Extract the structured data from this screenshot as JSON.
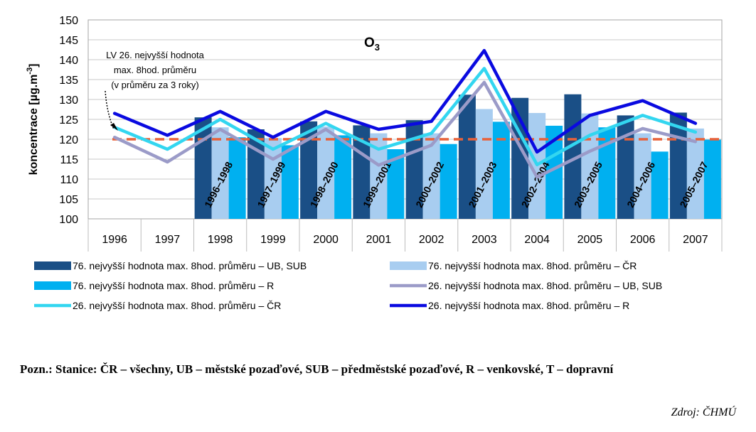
{
  "chart_data": {
    "type": "bar",
    "title": "O3",
    "ylabel": "koncentrace [µg.m-3]",
    "ylabel_parts": {
      "main": "koncentrace [µg.m",
      "sup": "-3",
      "close": "]"
    },
    "ylim": [
      100,
      150
    ],
    "yticks": [
      100,
      105,
      110,
      115,
      120,
      125,
      130,
      135,
      140,
      145,
      150
    ],
    "categories": [
      "1996",
      "1997",
      "1998",
      "1999",
      "2000",
      "2001",
      "2002",
      "2003",
      "2004",
      "2005",
      "2006",
      "2007"
    ],
    "period_labels": [
      "",
      "",
      "1996–1998",
      "1997–1999",
      "1998–2000",
      "1999–2001",
      "2000–2002",
      "2001–2003",
      "2002–2004",
      "2003–2005",
      "2004–2006",
      "2005–2007"
    ],
    "bar_series": [
      {
        "name": "76. nejvyšší hodnota max. 8hod. průměru – UB, SUB",
        "color": "#1a4f86",
        "values": [
          null,
          null,
          125.5,
          122.5,
          124.5,
          123.5,
          124.8,
          131.2,
          130.4,
          131.3,
          126.0,
          126.7
        ]
      },
      {
        "name": "76. nejvyšší hodnota max. 8hod. průměru – ČR",
        "color": "#a8cdf0",
        "values": [
          null,
          null,
          123.0,
          120.3,
          123.2,
          121.5,
          121.5,
          127.6,
          126.6,
          126.5,
          121.5,
          122.7
        ]
      },
      {
        "name": "76. nejvyšší hodnota max. 8hod. průměru – R",
        "color": "#00b0f0",
        "values": [
          null,
          null,
          120.5,
          118.5,
          121.0,
          117.5,
          118.8,
          124.4,
          123.4,
          123.0,
          116.9,
          119.9
        ]
      }
    ],
    "line_series": [
      {
        "name": "26. nejvyšší hodnota max. 8hod. průměru – UB, SUB",
        "color": "#9b9bc8",
        "values": [
          120.5,
          114.3,
          122.5,
          115.0,
          122.5,
          113.5,
          118.5,
          134.3,
          110.5,
          117.0,
          122.7,
          119.4
        ]
      },
      {
        "name": "26. nejvyšší hodnota max. 8hod. průměru – ČR",
        "color": "#33d6f0",
        "values": [
          123.0,
          117.5,
          125.0,
          117.5,
          124.0,
          117.5,
          121.5,
          137.8,
          113.6,
          121.0,
          126.0,
          121.8
        ]
      },
      {
        "name": "26. nejvyšší hodnota max. 8hod. průměru – R",
        "color": "#0a0ae0",
        "values": [
          126.5,
          121.0,
          127.0,
          120.5,
          127.0,
          122.5,
          124.5,
          142.3,
          116.8,
          126.0,
          129.7,
          124.0
        ]
      }
    ],
    "limit_value": 120,
    "limit_color": "#e8623a",
    "annotation": [
      "LV 26. nejvyšší hodnota",
      "max. 8hod. průměru",
      "(v průměru za 3 roky)"
    ],
    "grid": true
  },
  "note": "Pozn.: Stanice: ČR – všechny, UB – městské pozaďové, SUB – předměstské pozaďové, R – venkovské, T – dopravní",
  "source": "Zdroj: ČHMÚ"
}
